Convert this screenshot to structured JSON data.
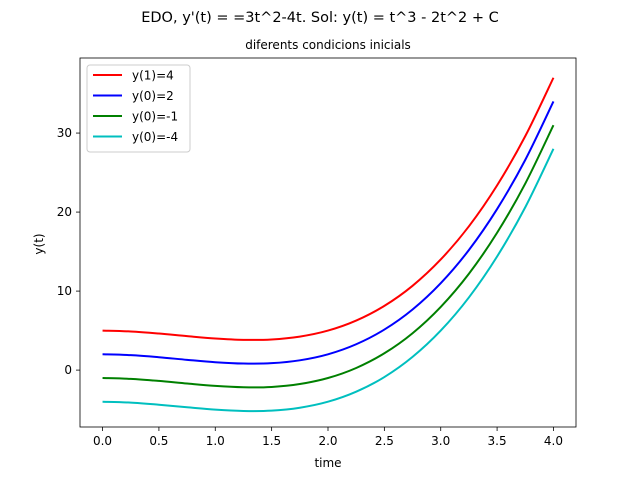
{
  "chart_data": {
    "type": "line",
    "suptitle": "EDO, y'(t) = =3t^2-4t. Sol: y(t) = t^3 - 2t^2 + C",
    "title": "diferents condicions inicials",
    "xlabel": "time",
    "ylabel": "y(t)",
    "xlim": [
      -0.2,
      4.2
    ],
    "ylim": [
      -7.2,
      39.5
    ],
    "xticks": [
      0.0,
      0.5,
      1.0,
      1.5,
      2.0,
      2.5,
      3.0,
      3.5,
      4.0
    ],
    "xtick_labels": [
      "0.0",
      "0.5",
      "1.0",
      "1.5",
      "2.0",
      "2.5",
      "3.0",
      "3.5",
      "4.0"
    ],
    "yticks": [
      0,
      10,
      20,
      30
    ],
    "ytick_labels": [
      "0",
      "10",
      "20",
      "30"
    ],
    "grid": false,
    "legend_position": "top-left",
    "x": [
      0.0,
      0.25,
      0.5,
      0.75,
      1.0,
      1.25,
      1.5,
      1.75,
      2.0,
      2.25,
      2.5,
      2.75,
      3.0,
      3.25,
      3.5,
      3.75,
      4.0
    ],
    "series": [
      {
        "name": "y(1)=4",
        "color": "#ff0000",
        "values": [
          5.0,
          4.89,
          4.63,
          4.3,
          4.0,
          3.83,
          3.88,
          4.24,
          5.0,
          6.27,
          8.13,
          10.67,
          14.0,
          18.2,
          23.38,
          29.61,
          37.0
        ]
      },
      {
        "name": "y(0)=2",
        "color": "#0000ff",
        "values": [
          2.0,
          1.89,
          1.63,
          1.3,
          1.0,
          0.83,
          0.88,
          1.24,
          2.0,
          3.27,
          5.13,
          7.67,
          11.0,
          15.2,
          20.38,
          26.61,
          34.0
        ]
      },
      {
        "name": "y(0)=-1",
        "color": "#008000",
        "values": [
          -1.0,
          -1.11,
          -1.37,
          -1.7,
          -2.0,
          -2.17,
          -2.13,
          -1.76,
          -1.0,
          0.27,
          2.13,
          4.67,
          8.0,
          12.2,
          17.38,
          23.61,
          31.0
        ]
      },
      {
        "name": "y(0)=-4",
        "color": "#00bfbf",
        "values": [
          -4.0,
          -4.11,
          -4.38,
          -4.7,
          -5.0,
          -5.17,
          -5.13,
          -4.76,
          -4.0,
          -2.73,
          -0.88,
          1.67,
          5.0,
          9.2,
          14.38,
          20.61,
          28.0
        ]
      }
    ]
  }
}
